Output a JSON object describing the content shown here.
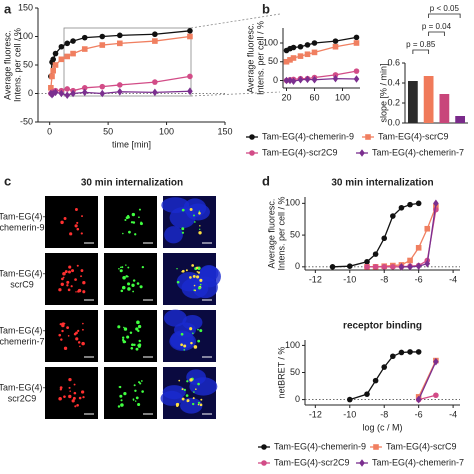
{
  "chart_data": [
    {
      "panel": "a",
      "type": "line",
      "xlabel": "time [min]",
      "ylabel": [
        "Average fluoresc.",
        "Intens. per cell / %"
      ],
      "xlim": [
        -10,
        150
      ],
      "xticks": [
        0,
        50,
        100,
        150
      ],
      "ylim": [
        -50,
        150
      ],
      "yticks": [
        -50,
        0,
        50,
        100,
        150
      ],
      "zero_line": true,
      "x": [
        1,
        2,
        3,
        5,
        10,
        15,
        20,
        30,
        45,
        60,
        90,
        120
      ],
      "series": [
        {
          "name": "Tam-EG(4)-chemerin-9",
          "color": "#111111",
          "marker": "circle",
          "values": [
            30,
            55,
            60,
            70,
            82,
            88,
            92,
            98,
            100,
            102,
            104,
            110
          ]
        },
        {
          "name": "Tam-EG(4)-scrC9",
          "color": "#f07f60",
          "marker": "square",
          "values": [
            10,
            30,
            40,
            50,
            60,
            65,
            70,
            78,
            85,
            88,
            92,
            100
          ]
        },
        {
          "name": "Tam-EG(4)-scr2C9",
          "color": "#d24c87",
          "marker": "circle",
          "values": [
            0,
            2,
            3,
            5,
            5,
            8,
            5,
            10,
            12,
            15,
            20,
            30
          ]
        },
        {
          "name": "Tam-EG(4)-chemerin-7",
          "color": "#7b2f8f",
          "marker": "diamond",
          "values": [
            0,
            -2,
            0,
            2,
            0,
            -3,
            0,
            2,
            0,
            3,
            2,
            4
          ]
        }
      ]
    },
    {
      "panel": "b",
      "type": "line",
      "ylabel": [
        "Average fluoresc.",
        "Intens. per cell / %"
      ],
      "xlim": [
        15,
        125
      ],
      "xticks": [
        20,
        60,
        100
      ],
      "ylim": [
        -20,
        140
      ],
      "yticks": [
        0,
        50,
        100
      ],
      "x": [
        20,
        25,
        30,
        40,
        50,
        60,
        90,
        120
      ],
      "series": [
        {
          "color": "#111111",
          "marker": "circle",
          "values": [
            80,
            85,
            88,
            90,
            95,
            100,
            105,
            115
          ]
        },
        {
          "color": "#f07f60",
          "marker": "square",
          "values": [
            50,
            55,
            60,
            65,
            70,
            75,
            90,
            100
          ]
        },
        {
          "color": "#d24c87",
          "marker": "circle",
          "values": [
            0,
            2,
            3,
            5,
            5,
            8,
            15,
            25
          ]
        },
        {
          "color": "#7b2f8f",
          "marker": "diamond",
          "values": [
            0,
            0,
            -2,
            2,
            3,
            2,
            5,
            4
          ]
        }
      ]
    },
    {
      "type": "bar",
      "ylabel": "slope [% / min]",
      "ylim": [
        0,
        0.6
      ],
      "yticks": [
        {
          "value": 0,
          "label": "0.0"
        },
        {
          "value": 0.2,
          "label": "0.2"
        },
        {
          "value": 0.4,
          "label": "0.4"
        },
        {
          "value": 0.6,
          "label": "0.6"
        }
      ],
      "values": [
        0.42,
        0.47,
        0.29,
        0.07
      ],
      "colors": [
        "#2b2b2b",
        "#f07a5a",
        "#c8467a",
        "#7a2a8a"
      ],
      "annotations": [
        "p < 0.05",
        "p = 0.04",
        "p = 0.85"
      ]
    },
    {
      "panel": "d",
      "type": "line",
      "title": "30 min internalization",
      "ylabel": [
        "Average fluoresc.",
        "Intens. per cell / %"
      ],
      "xlim": [
        -12.6,
        -3.6
      ],
      "xticks": [
        -12,
        -10,
        -8,
        -6,
        -4
      ],
      "ylim": [
        -5,
        110
      ],
      "yticks": [
        0,
        50,
        100
      ],
      "zero_line": true,
      "x": [
        -11,
        -10,
        -9,
        -8.5,
        -8,
        -7.5,
        -7,
        -6.5,
        -6,
        -5.5,
        -5
      ],
      "series": [
        {
          "name": "Tam-EG(4)-chemerin-9",
          "color": "#111111",
          "marker": "circle",
          "values": [
            0,
            1,
            8,
            20,
            45,
            80,
            93,
            98,
            100,
            null,
            null
          ]
        },
        {
          "name": "Tam-EG(4)-scrC9",
          "color": "#f07f60",
          "marker": "square",
          "values": [
            null,
            null,
            0,
            0,
            1,
            2,
            3,
            10,
            30,
            60,
            95
          ]
        },
        {
          "name": "Tam-EG(4)-scr2C9",
          "color": "#d24c87",
          "marker": "circle",
          "values": [
            null,
            null,
            0,
            0,
            0,
            0,
            0,
            1,
            2,
            10,
            90
          ]
        },
        {
          "name": "Tam-EG(4)-chemerin-7",
          "color": "#7b2f8f",
          "marker": "diamond",
          "values": [
            null,
            null,
            null,
            null,
            null,
            null,
            0,
            0,
            1,
            5,
            100
          ]
        }
      ]
    },
    {
      "type": "line",
      "title": "receptor binding",
      "xlabel": "log (c / M)",
      "ylabel": "netBRET / %",
      "xlim": [
        -12.6,
        -3.6
      ],
      "xticks": [
        -12,
        -10,
        -8,
        -6,
        -4
      ],
      "ylim": [
        -10,
        110
      ],
      "yticks": [
        0,
        50,
        100
      ],
      "zero_line": true,
      "x": [
        -10,
        -9,
        -8.5,
        -8,
        -7.5,
        -7,
        -6.5,
        -6,
        -5
      ],
      "series": [
        {
          "color": "#111111",
          "marker": "circle",
          "values": [
            0,
            10,
            35,
            60,
            80,
            87,
            88,
            88,
            null
          ]
        },
        {
          "color": "#f07f60",
          "marker": "square",
          "values": [
            null,
            null,
            null,
            null,
            null,
            null,
            null,
            5,
            72
          ]
        },
        {
          "color": "#d24c87",
          "marker": "circle",
          "values": [
            null,
            null,
            null,
            null,
            null,
            null,
            null,
            0,
            8
          ]
        },
        {
          "color": "#7b2f8f",
          "marker": "diamond",
          "values": [
            null,
            null,
            null,
            null,
            null,
            null,
            null,
            0,
            70
          ]
        }
      ]
    }
  ],
  "panel_c": {
    "letter": "c",
    "title": "30 min internalization",
    "rows": [
      [
        "Tam-EG(4)-",
        "chemerin-9"
      ],
      [
        "Tam-EG(4)-",
        "scrC9"
      ],
      [
        "Tam-EG(4)-",
        "chemerin-7"
      ],
      [
        "Tam-EG(4)-",
        "scr2C9"
      ]
    ]
  }
}
